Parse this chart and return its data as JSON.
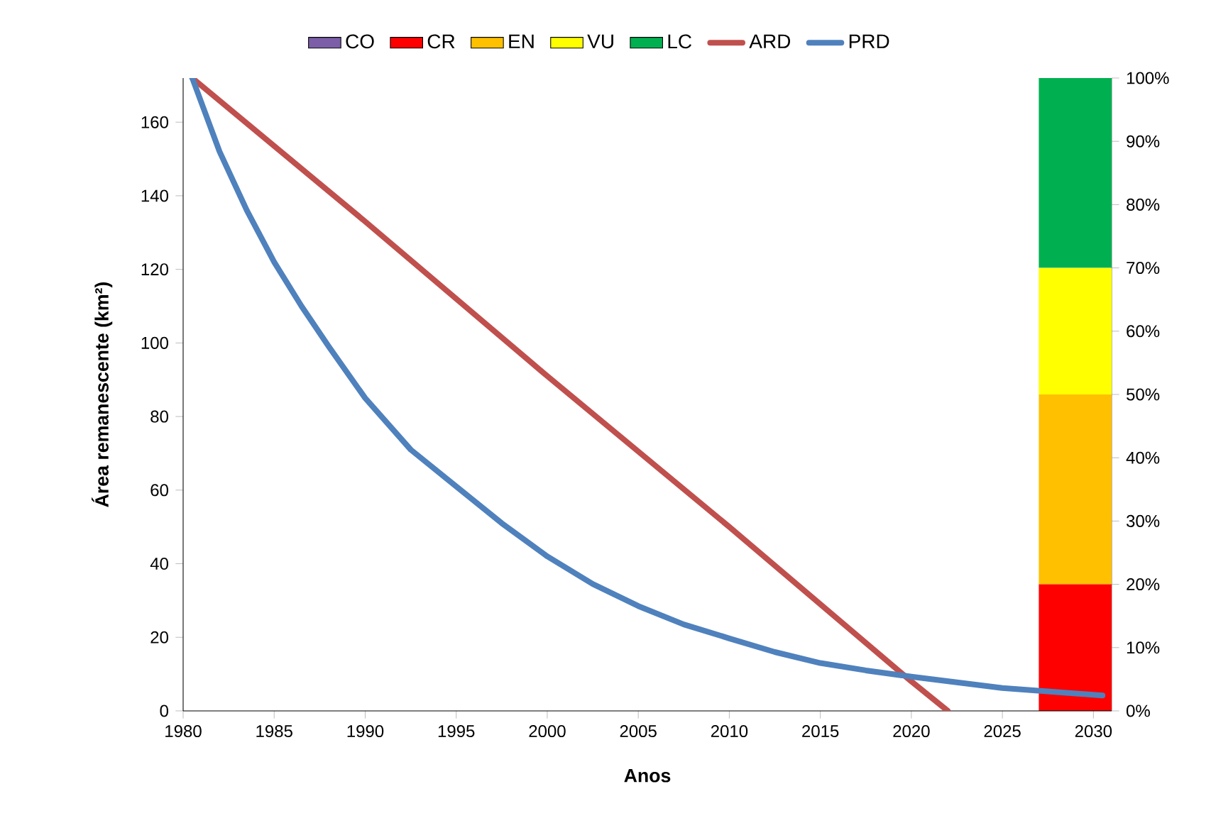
{
  "chart_data": {
    "type": "line",
    "xlabel": "Anos",
    "ylabel": "Área remanescente (km²)",
    "xlim": [
      1980,
      2031
    ],
    "xticks": [
      1980,
      1985,
      1990,
      1995,
      2000,
      2005,
      2010,
      2015,
      2020,
      2025,
      2030
    ],
    "ylim": [
      0,
      172
    ],
    "yticks": [
      0,
      20,
      40,
      60,
      80,
      100,
      120,
      140,
      160
    ],
    "y2lim": [
      0,
      100
    ],
    "y2ticks": [
      {
        "value": 0,
        "label": "0%"
      },
      {
        "value": 10,
        "label": "10%"
      },
      {
        "value": 20,
        "label": "20%"
      },
      {
        "value": 30,
        "label": "30%"
      },
      {
        "value": 40,
        "label": "40%"
      },
      {
        "value": 50,
        "label": "50%"
      },
      {
        "value": 60,
        "label": "60%"
      },
      {
        "value": 70,
        "label": "70%"
      },
      {
        "value": 80,
        "label": "80%"
      },
      {
        "value": 90,
        "label": "90%"
      },
      {
        "value": 100,
        "label": "100%"
      }
    ],
    "stacked": true,
    "legend": "top",
    "series": [
      {
        "name": "CO",
        "type": "bar",
        "axis": "y2",
        "color": "#7b5ea7",
        "x": [
          2029
        ],
        "values": [
          0
        ]
      },
      {
        "name": "CR",
        "type": "bar",
        "axis": "y2",
        "color": "#ff0000",
        "x": [
          2029
        ],
        "values": [
          20
        ]
      },
      {
        "name": "EN",
        "type": "bar",
        "axis": "y2",
        "color": "#ffc000",
        "x": [
          2029
        ],
        "values": [
          30
        ]
      },
      {
        "name": "VU",
        "type": "bar",
        "axis": "y2",
        "color": "#ffff00",
        "x": [
          2029
        ],
        "values": [
          20
        ]
      },
      {
        "name": "LC",
        "type": "bar",
        "axis": "y2",
        "color": "#00b050",
        "x": [
          2029
        ],
        "values": [
          30
        ]
      },
      {
        "name": "ARD",
        "color": "#c0504d",
        "x": [
          1980.5,
          1990,
          2000,
          2010,
          2020,
          2022
        ],
        "values": [
          172,
          133,
          91,
          50,
          8,
          0
        ]
      },
      {
        "name": "PRD",
        "color": "#4f81bd",
        "x": [
          1980.5,
          1982,
          1983.5,
          1985,
          1986.5,
          1988,
          1990,
          1992.5,
          1995,
          1997.5,
          2000,
          2002.5,
          2005,
          2007.5,
          2010,
          2012.5,
          2015,
          2017.5,
          2020,
          2025,
          2030.5
        ],
        "values": [
          172,
          152,
          136,
          122,
          110,
          99,
          85,
          71,
          61,
          51,
          42,
          34.5,
          28.5,
          23.5,
          19.7,
          16,
          13,
          11,
          9.3,
          6.2,
          4.2
        ]
      }
    ]
  }
}
